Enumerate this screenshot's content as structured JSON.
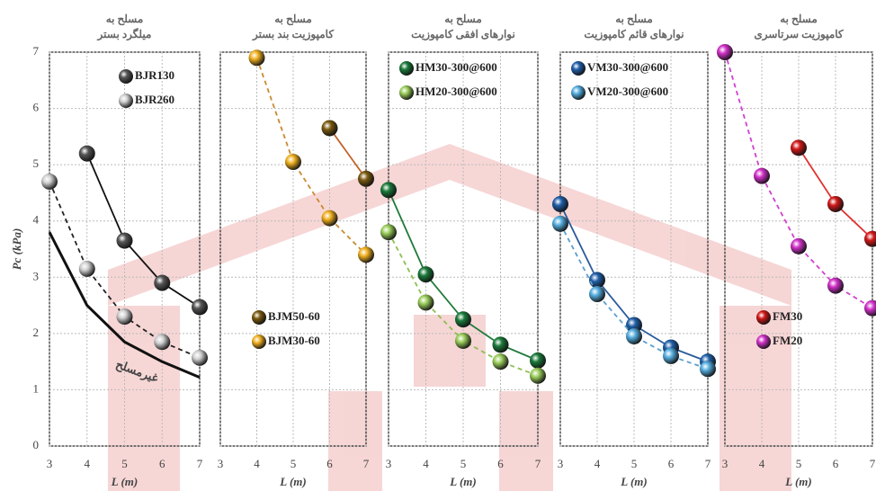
{
  "chart_data": [
    {
      "type": "line",
      "title": [
        "مسلح به",
        "میلگرد بستر"
      ],
      "ylabel": "Pc (kPa)",
      "xlabel": "L (m)",
      "xlim": [
        3,
        7
      ],
      "ylim": [
        0,
        7
      ],
      "xticks": [
        3,
        4,
        5,
        6,
        7
      ],
      "yticks": [
        0,
        1,
        2,
        3,
        4,
        5,
        6,
        7
      ],
      "grid": true,
      "legend": "upper right",
      "series": [
        {
          "name": "BJR130",
          "color": "#555555",
          "line_color": "#111111",
          "dashed": false,
          "x": [
            4,
            5,
            6,
            7
          ],
          "values": [
            5.2,
            3.65,
            2.9,
            2.47
          ]
        },
        {
          "name": "BJR260",
          "color": "#d0d0d0",
          "line_color": "#222222",
          "dashed": true,
          "x": [
            3,
            4,
            5,
            6,
            7
          ],
          "values": [
            4.7,
            3.15,
            2.3,
            1.85,
            1.57
          ]
        },
        {
          "name": "غیرمسلح",
          "color": "#111111",
          "line_color": "#111111",
          "dashed": false,
          "markers": false,
          "in_legend": false,
          "x": [
            3,
            4,
            5,
            6,
            7
          ],
          "values": [
            3.8,
            2.5,
            1.85,
            1.5,
            1.22
          ]
        }
      ]
    },
    {
      "type": "line",
      "title": [
        "مسلح به",
        "کامپوزیت بند بستر"
      ],
      "xlabel": "L (m)",
      "xlim": [
        3,
        7
      ],
      "ylim": [
        0,
        7
      ],
      "xticks": [
        3,
        4,
        5,
        6,
        7
      ],
      "grid": true,
      "legend": "center left",
      "series": [
        {
          "name": "BJM50-60",
          "color": "#7a5a10",
          "line_color": "#c0642a",
          "dashed": false,
          "x": [
            6,
            7
          ],
          "values": [
            5.65,
            4.75
          ]
        },
        {
          "name": "BJM30-60",
          "color": "#f0b020",
          "line_color": "#c88a30",
          "dashed": true,
          "x": [
            4,
            5,
            6,
            7
          ],
          "values": [
            6.9,
            5.05,
            4.05,
            3.4
          ]
        }
      ]
    },
    {
      "type": "line",
      "title": [
        "مسلح به",
        "نوارهای افقی کامپوزیت"
      ],
      "xlabel": "L (m)",
      "xlim": [
        3,
        7
      ],
      "ylim": [
        0,
        7
      ],
      "xticks": [
        3,
        4,
        5,
        6,
        7
      ],
      "grid": true,
      "legend": "upper left",
      "series": [
        {
          "name": "HM30-300@600",
          "color": "#1a7a3a",
          "line_color": "#1f7a3a",
          "dashed": false,
          "x": [
            3,
            4,
            5,
            6,
            7
          ],
          "values": [
            4.55,
            3.05,
            2.25,
            1.8,
            1.52
          ]
        },
        {
          "name": "HM20-300@600",
          "color": "#9acd5a",
          "line_color": "#8cbf50",
          "dashed": true,
          "x": [
            3,
            4,
            5,
            6,
            7
          ],
          "values": [
            3.8,
            2.55,
            1.87,
            1.5,
            1.25
          ]
        }
      ]
    },
    {
      "type": "line",
      "title": [
        "مسلح به",
        "نوارهای قائم کامپوزیت"
      ],
      "xlabel": "L (m)",
      "xlim": [
        3,
        7
      ],
      "ylim": [
        0,
        7
      ],
      "xticks": [
        3,
        4,
        5,
        6,
        7
      ],
      "grid": true,
      "legend": "upper left",
      "series": [
        {
          "name": "VM30-300@600",
          "color": "#1f5fa8",
          "line_color": "#2a5a9a",
          "dashed": false,
          "x": [
            3,
            4,
            5,
            6,
            7
          ],
          "values": [
            4.3,
            2.95,
            2.15,
            1.75,
            1.5
          ]
        },
        {
          "name": "VM20-300@600",
          "color": "#55aee0",
          "line_color": "#5a9fd0",
          "dashed": true,
          "x": [
            3,
            4,
            5,
            6,
            7
          ],
          "values": [
            3.95,
            2.7,
            1.95,
            1.6,
            1.37
          ]
        }
      ]
    },
    {
      "type": "line",
      "title": [
        "مسلح به",
        "کامپوزیت سرتاسری"
      ],
      "xlabel": "L (m)",
      "xlim": [
        3,
        7
      ],
      "ylim": [
        0,
        7
      ],
      "xticks": [
        3,
        4,
        5,
        6,
        7
      ],
      "grid": true,
      "legend": "center left",
      "series": [
        {
          "name": "FM30",
          "color": "#d01818",
          "line_color": "#e03030",
          "dashed": false,
          "x": [
            5,
            6,
            7
          ],
          "values": [
            5.3,
            4.3,
            3.68
          ]
        },
        {
          "name": "FM20",
          "color": "#d030c8",
          "line_color": "#d040d0",
          "dashed": true,
          "x": [
            3,
            4,
            5,
            6,
            7
          ],
          "values": [
            7,
            4.8,
            3.55,
            2.85,
            2.45
          ]
        }
      ]
    }
  ]
}
